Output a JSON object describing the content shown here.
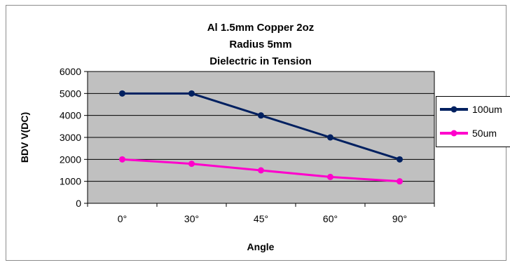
{
  "chart_data": {
    "type": "line",
    "title_lines": [
      "Al 1.5mm Copper 2oz",
      "Radius 5mm",
      "Dielectric in Tension"
    ],
    "categories": [
      "0°",
      "30°",
      "45°",
      "60°",
      "90°"
    ],
    "series": [
      {
        "name": "100um",
        "values": [
          5000,
          5000,
          4000,
          3000,
          2000
        ],
        "color": "#002060"
      },
      {
        "name": "50um",
        "values": [
          2000,
          1800,
          1500,
          1200,
          1000
        ],
        "color": "#FF00CC"
      }
    ],
    "xlabel": "Angle",
    "ylabel": "BDV V(DC)",
    "ylim": [
      0,
      6000
    ],
    "yticks": [
      "0",
      "1000",
      "2000",
      "3000",
      "4000",
      "5000",
      "6000"
    ],
    "grid": true,
    "plot_background": "#C0C0C0",
    "legend_position": "right"
  }
}
